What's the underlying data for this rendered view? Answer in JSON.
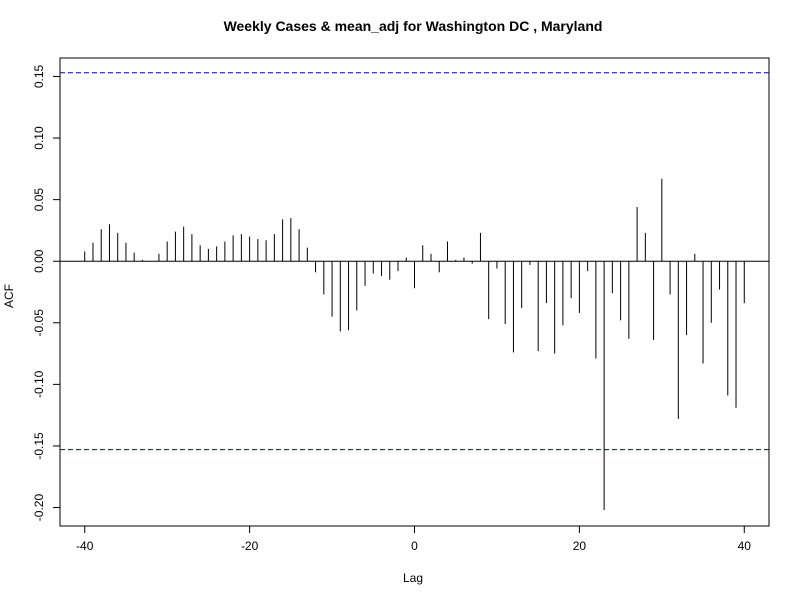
{
  "chart_data": {
    "type": "bar",
    "subtype": "acf-ccf",
    "title": "Weekly Cases & mean_adj for Washington DC , Maryland",
    "xlabel": "Lag",
    "ylabel": "ACF",
    "xlim": [
      -43,
      43
    ],
    "ylim": [
      -0.215,
      0.165
    ],
    "xticks": [
      -40,
      -20,
      0,
      20,
      40
    ],
    "yticks": [
      -0.2,
      -0.15,
      -0.1,
      -0.05,
      0.0,
      0.05,
      0.1,
      0.15
    ],
    "ytick_labels": [
      "-0.20",
      "-0.15",
      "-0.10",
      "-0.05",
      "0.00",
      "0.05",
      "0.10",
      "0.15"
    ],
    "confidence_bounds": [
      0.153,
      -0.153
    ],
    "zero_line": true,
    "colors": {
      "bars": "#000000",
      "bounds": "#0000cc",
      "zero": "#000000"
    },
    "lags": [
      -40,
      -39,
      -38,
      -37,
      -36,
      -35,
      -34,
      -33,
      -32,
      -31,
      -30,
      -29,
      -28,
      -27,
      -26,
      -25,
      -24,
      -23,
      -22,
      -21,
      -20,
      -19,
      -18,
      -17,
      -16,
      -15,
      -14,
      -13,
      -12,
      -11,
      -10,
      -9,
      -8,
      -7,
      -6,
      -5,
      -4,
      -3,
      -2,
      -1,
      0,
      1,
      2,
      3,
      4,
      5,
      6,
      7,
      8,
      9,
      10,
      11,
      12,
      13,
      14,
      15,
      16,
      17,
      18,
      19,
      20,
      21,
      22,
      23,
      24,
      25,
      26,
      27,
      28,
      29,
      30,
      31,
      32,
      33,
      34,
      35,
      36,
      37,
      38,
      39,
      40
    ],
    "values": [
      0.008,
      0.015,
      0.026,
      0.03,
      0.023,
      0.015,
      0.007,
      0.001,
      0.0,
      0.006,
      0.016,
      0.024,
      0.028,
      0.022,
      0.013,
      0.01,
      0.012,
      0.016,
      0.021,
      0.022,
      0.02,
      0.018,
      0.017,
      0.022,
      0.034,
      0.035,
      0.026,
      0.011,
      -0.009,
      -0.027,
      -0.045,
      -0.057,
      -0.056,
      -0.04,
      -0.02,
      -0.01,
      -0.012,
      -0.015,
      -0.008,
      0.003,
      -0.022,
      0.013,
      0.006,
      -0.009,
      0.016,
      0.001,
      0.003,
      -0.002,
      0.023,
      -0.047,
      -0.006,
      -0.051,
      -0.074,
      -0.038,
      -0.003,
      -0.073,
      -0.034,
      -0.075,
      -0.052,
      -0.03,
      -0.042,
      -0.008,
      -0.079,
      -0.202,
      -0.026,
      -0.048,
      -0.063,
      0.044,
      0.023,
      -0.064,
      0.067,
      -0.027,
      -0.128,
      -0.06,
      0.006,
      -0.083,
      -0.05,
      -0.023,
      -0.109,
      -0.119,
      -0.034
    ]
  }
}
